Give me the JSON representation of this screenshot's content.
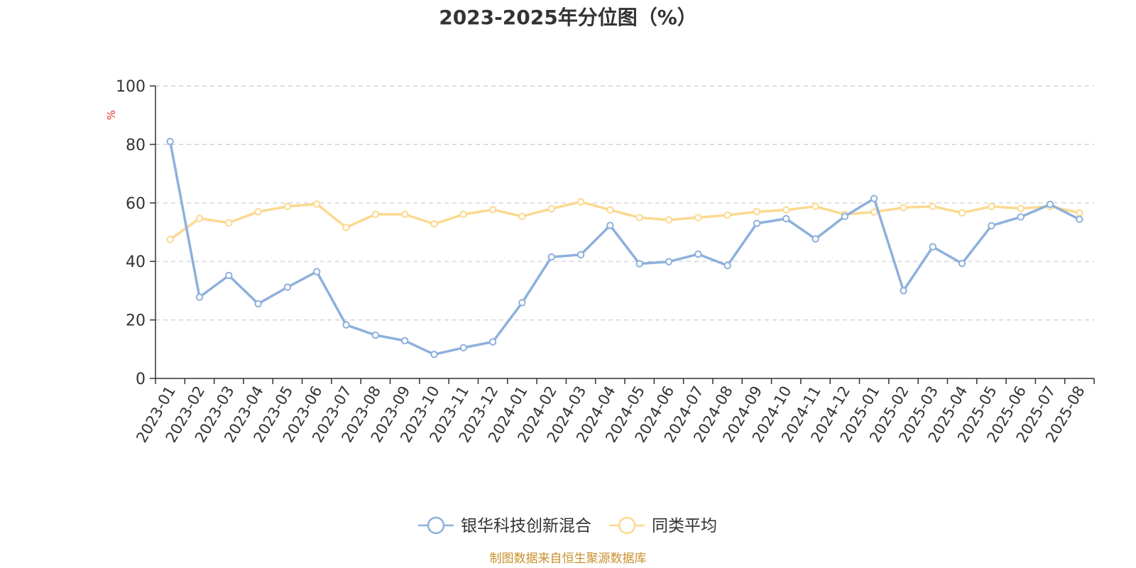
{
  "chart_data": {
    "type": "line",
    "title": "2023-2025年分位图（%）",
    "ylabel": "%",
    "ylim": [
      0,
      100
    ],
    "yticks": [
      "0",
      "20",
      "40",
      "60",
      "80",
      "100"
    ],
    "grid": true,
    "legend_position": "bottom",
    "categories": [
      "2023-01",
      "2023-02",
      "2023-03",
      "2023-04",
      "2023-05",
      "2023-06",
      "2023-07",
      "2023-08",
      "2023-09",
      "2023-10",
      "2023-11",
      "2023-12",
      "2024-01",
      "2024-02",
      "2024-03",
      "2024-04",
      "2024-05",
      "2024-06",
      "2024-07",
      "2024-08",
      "2024-09",
      "2024-10",
      "2024-11",
      "2024-12",
      "2025-01",
      "2025-02",
      "2025-03",
      "2025-04",
      "2025-05",
      "2025-06",
      "2025-07",
      "2025-08"
    ],
    "series": [
      {
        "name": "银华科技创新混合",
        "color": "#8eb0dc",
        "values": [
          81,
          27.8,
          35.2,
          25.5,
          31.2,
          36.5,
          18.3,
          14.8,
          12.9,
          8.2,
          10.5,
          12.5,
          25.9,
          41.5,
          42.3,
          52.3,
          39.2,
          39.9,
          42.5,
          38.6,
          53,
          54.6,
          47.7,
          55.4,
          61.5,
          30,
          45,
          39.3,
          52.2,
          55.2,
          59.5,
          54.4
        ]
      },
      {
        "name": "同类平均",
        "color": "#fbd98f",
        "values": [
          47.5,
          54.7,
          53.2,
          57,
          58.8,
          59.6,
          51.6,
          56.1,
          56.1,
          52.8,
          56.1,
          57.7,
          55.4,
          58,
          60.4,
          57.6,
          55,
          54.2,
          55,
          55.8,
          57,
          57.6,
          58.8,
          56.1,
          56.9,
          58.4,
          58.8,
          56.6,
          58.8,
          58.1,
          58.8,
          56.6
        ]
      }
    ]
  },
  "colors": {
    "ylabel": "#e6322e",
    "source": "#c8912d",
    "axis": "#333333",
    "grid": "#cccccc"
  },
  "footer": {
    "source": "制图数据来自恒生聚源数据库"
  }
}
